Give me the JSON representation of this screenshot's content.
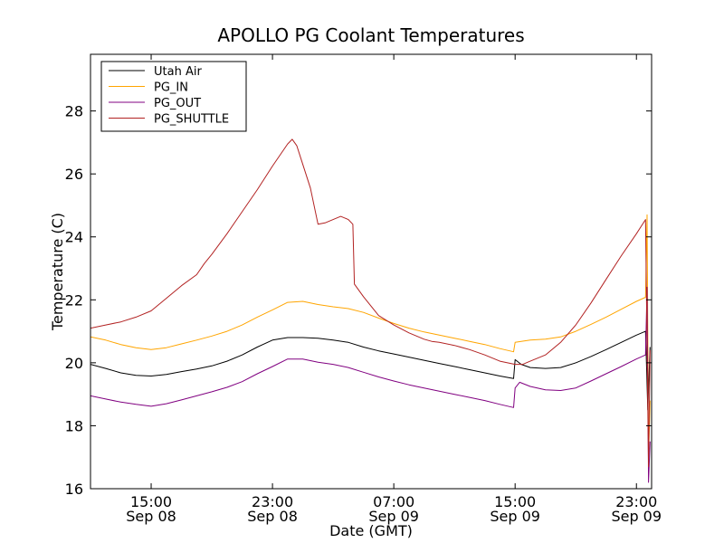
{
  "chart_data": {
    "type": "line",
    "title": "APOLLO PG Coolant Temperatures",
    "xlabel": "Date (GMT)",
    "ylabel": "Temperature (C)",
    "x_unit": "hours since Sep 08 11:00 GMT",
    "xlim": [
      0,
      37
    ],
    "ylim": [
      16,
      29.8
    ],
    "grid": false,
    "legend_position": "top-left",
    "y_ticks": [
      16,
      18,
      20,
      22,
      24,
      26,
      28
    ],
    "x_ticks": [
      {
        "x": 4,
        "time": "15:00",
        "date": "Sep 08"
      },
      {
        "x": 12,
        "time": "23:00",
        "date": "Sep 08"
      },
      {
        "x": 20,
        "time": "07:00",
        "date": "Sep 09"
      },
      {
        "x": 28,
        "time": "15:00",
        "date": "Sep 09"
      },
      {
        "x": 36,
        "time": "23:00",
        "date": "Sep 09"
      }
    ],
    "series": [
      {
        "name": "Utah Air",
        "color": "#000000",
        "points": [
          [
            0,
            19.95
          ],
          [
            1,
            19.82
          ],
          [
            2,
            19.68
          ],
          [
            3,
            19.6
          ],
          [
            4,
            19.58
          ],
          [
            5,
            19.63
          ],
          [
            6,
            19.72
          ],
          [
            7,
            19.8
          ],
          [
            8,
            19.9
          ],
          [
            9,
            20.05
          ],
          [
            10,
            20.25
          ],
          [
            11,
            20.5
          ],
          [
            12,
            20.72
          ],
          [
            13,
            20.8
          ],
          [
            14,
            20.8
          ],
          [
            15,
            20.78
          ],
          [
            16,
            20.72
          ],
          [
            17,
            20.65
          ],
          [
            18,
            20.5
          ],
          [
            19,
            20.38
          ],
          [
            20,
            20.28
          ],
          [
            21,
            20.18
          ],
          [
            22,
            20.08
          ],
          [
            23,
            19.98
          ],
          [
            24,
            19.88
          ],
          [
            25,
            19.78
          ],
          [
            26,
            19.68
          ],
          [
            27,
            19.58
          ],
          [
            27.9,
            19.5
          ],
          [
            28,
            20.1
          ],
          [
            28.4,
            19.95
          ],
          [
            29,
            19.85
          ],
          [
            30,
            19.82
          ],
          [
            31,
            19.85
          ],
          [
            32,
            20.0
          ],
          [
            33,
            20.2
          ],
          [
            34,
            20.42
          ],
          [
            35,
            20.65
          ],
          [
            36,
            20.88
          ],
          [
            36.6,
            21.0
          ],
          [
            36.75,
            18.5
          ],
          [
            36.9,
            20.5
          ]
        ]
      },
      {
        "name": "PG_IN",
        "color": "#ffa500",
        "points": [
          [
            0,
            20.82
          ],
          [
            1,
            20.72
          ],
          [
            2,
            20.58
          ],
          [
            3,
            20.48
          ],
          [
            4,
            20.42
          ],
          [
            5,
            20.48
          ],
          [
            6,
            20.6
          ],
          [
            7,
            20.72
          ],
          [
            8,
            20.85
          ],
          [
            9,
            21.0
          ],
          [
            10,
            21.2
          ],
          [
            11,
            21.45
          ],
          [
            12,
            21.68
          ],
          [
            13,
            21.92
          ],
          [
            14,
            21.95
          ],
          [
            15,
            21.85
          ],
          [
            16,
            21.78
          ],
          [
            17,
            21.72
          ],
          [
            18,
            21.6
          ],
          [
            19,
            21.42
          ],
          [
            20,
            21.25
          ],
          [
            21,
            21.1
          ],
          [
            22,
            20.98
          ],
          [
            23,
            20.88
          ],
          [
            24,
            20.78
          ],
          [
            25,
            20.68
          ],
          [
            26,
            20.58
          ],
          [
            27,
            20.45
          ],
          [
            27.9,
            20.35
          ],
          [
            28,
            20.65
          ],
          [
            29,
            20.72
          ],
          [
            30,
            20.75
          ],
          [
            31,
            20.82
          ],
          [
            32,
            21.0
          ],
          [
            33,
            21.22
          ],
          [
            34,
            21.45
          ],
          [
            35,
            21.7
          ],
          [
            36,
            21.95
          ],
          [
            36.6,
            22.08
          ],
          [
            36.7,
            24.7
          ],
          [
            36.8,
            17.0
          ],
          [
            36.9,
            18.8
          ]
        ]
      },
      {
        "name": "PG_OUT",
        "color": "#800080",
        "points": [
          [
            0,
            18.95
          ],
          [
            1,
            18.85
          ],
          [
            2,
            18.75
          ],
          [
            3,
            18.68
          ],
          [
            4,
            18.62
          ],
          [
            5,
            18.7
          ],
          [
            6,
            18.82
          ],
          [
            7,
            18.95
          ],
          [
            8,
            19.08
          ],
          [
            9,
            19.22
          ],
          [
            10,
            19.4
          ],
          [
            11,
            19.65
          ],
          [
            12,
            19.88
          ],
          [
            13,
            20.12
          ],
          [
            14,
            20.12
          ],
          [
            15,
            20.02
          ],
          [
            16,
            19.95
          ],
          [
            17,
            19.85
          ],
          [
            18,
            19.7
          ],
          [
            19,
            19.55
          ],
          [
            20,
            19.42
          ],
          [
            21,
            19.3
          ],
          [
            22,
            19.2
          ],
          [
            23,
            19.1
          ],
          [
            24,
            19.0
          ],
          [
            25,
            18.9
          ],
          [
            26,
            18.8
          ],
          [
            27,
            18.68
          ],
          [
            27.9,
            18.58
          ],
          [
            28,
            19.2
          ],
          [
            28.3,
            19.38
          ],
          [
            29,
            19.25
          ],
          [
            30,
            19.14
          ],
          [
            31,
            19.12
          ],
          [
            32,
            19.2
          ],
          [
            33,
            19.42
          ],
          [
            34,
            19.65
          ],
          [
            35,
            19.88
          ],
          [
            36,
            20.12
          ],
          [
            36.6,
            20.25
          ],
          [
            36.7,
            22.4
          ],
          [
            36.8,
            16.2
          ],
          [
            36.9,
            17.5
          ]
        ]
      },
      {
        "name": "PG_SHUTTLE",
        "color": "#b22222",
        "points": [
          [
            0,
            21.1
          ],
          [
            1,
            21.2
          ],
          [
            2,
            21.3
          ],
          [
            3,
            21.45
          ],
          [
            4,
            21.65
          ],
          [
            5,
            22.05
          ],
          [
            6,
            22.45
          ],
          [
            7,
            22.8
          ],
          [
            7.5,
            23.15
          ],
          [
            8,
            23.45
          ],
          [
            9,
            24.1
          ],
          [
            10,
            24.8
          ],
          [
            11,
            25.5
          ],
          [
            12,
            26.25
          ],
          [
            13,
            26.95
          ],
          [
            13.3,
            27.1
          ],
          [
            13.6,
            26.9
          ],
          [
            14,
            26.3
          ],
          [
            14.5,
            25.55
          ],
          [
            15,
            24.4
          ],
          [
            15.5,
            24.45
          ],
          [
            16,
            24.55
          ],
          [
            16.5,
            24.65
          ],
          [
            17,
            24.55
          ],
          [
            17.3,
            24.4
          ],
          [
            17.4,
            22.5
          ],
          [
            18,
            22.1
          ],
          [
            19,
            21.5
          ],
          [
            20,
            21.2
          ],
          [
            21,
            20.95
          ],
          [
            22,
            20.75
          ],
          [
            22.5,
            20.68
          ],
          [
            23,
            20.65
          ],
          [
            24,
            20.55
          ],
          [
            25,
            20.42
          ],
          [
            26,
            20.25
          ],
          [
            27,
            20.05
          ],
          [
            28,
            19.95
          ],
          [
            28.5,
            19.95
          ],
          [
            29,
            20.05
          ],
          [
            30,
            20.25
          ],
          [
            31,
            20.65
          ],
          [
            32,
            21.2
          ],
          [
            33,
            21.9
          ],
          [
            34,
            22.65
          ],
          [
            35,
            23.4
          ],
          [
            36,
            24.1
          ],
          [
            36.6,
            24.55
          ],
          [
            36.8,
            16.7
          ],
          [
            36.9,
            20.4
          ]
        ]
      }
    ]
  }
}
